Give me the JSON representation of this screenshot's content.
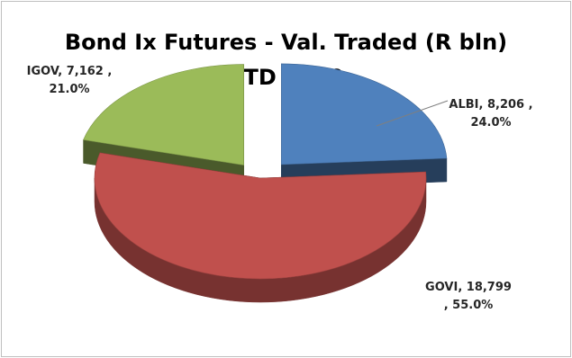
{
  "chart_data": {
    "type": "pie",
    "style": "3d-exploded",
    "title_lines": [
      "Bond Ix Futures - Val. Traded (R bln)",
      "YTD 2020"
    ],
    "slices": [
      {
        "name": "ALBI",
        "value": 8206,
        "percent": 24.0,
        "color": "#4f81bd",
        "label_lines": [
          "ALBI,  8,206  ,",
          "24.0%"
        ]
      },
      {
        "name": "GOVI",
        "value": 18799,
        "percent": 55.0,
        "color": "#c0504d",
        "label_lines": [
          "GOVI,  18,799",
          ", 55.0%"
        ]
      },
      {
        "name": "IGOV",
        "value": 7162,
        "percent": 21.0,
        "color": "#9bbb59",
        "label_lines": [
          "IGOV,  7,162  ,",
          "21.0%"
        ]
      }
    ],
    "legend": "none"
  }
}
